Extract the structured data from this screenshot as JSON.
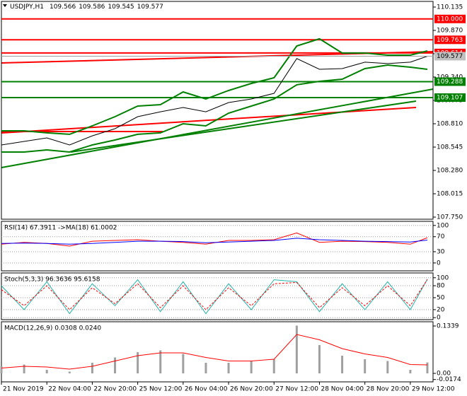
{
  "chart_data": [
    {
      "type": "line",
      "title": "USDJPY,H1",
      "ohlc": [
        109.566,
        109.586,
        109.545,
        109.577
      ],
      "x": [
        0,
        8,
        16,
        24,
        32,
        40,
        48,
        56,
        64,
        72,
        80,
        88,
        96,
        104,
        112,
        120,
        128,
        136,
        144,
        150
      ],
      "xlim": [
        0,
        152
      ],
      "xticks": [
        {
          "value": 0,
          "label": "21 Nov 2019"
        },
        {
          "value": 16,
          "label": "22 Nov 04:00"
        },
        {
          "value": 32,
          "label": "22 Nov 20:00"
        },
        {
          "value": 48,
          "label": "25 Nov 12:00"
        },
        {
          "value": 64,
          "label": "26 Nov 04:00"
        },
        {
          "value": 80,
          "label": "26 Nov 20:00"
        },
        {
          "value": 96,
          "label": "27 Nov 12:00"
        },
        {
          "value": 112,
          "label": "28 Nov 04:00"
        },
        {
          "value": 128,
          "label": "28 Nov 20:00"
        },
        {
          "value": 144,
          "label": "29 Nov 12:00"
        }
      ],
      "ylim": [
        107.726,
        110.199
      ],
      "yticks": [
        110.135,
        {
          "value": 109.87,
          "label": "109.870"
        },
        109.605,
        {
          "value": 109.34,
          "label": "109.340"
        },
        109.075,
        {
          "value": 108.81,
          "label": "108.810"
        },
        108.545,
        {
          "value": 108.28,
          "label": "108.280"
        },
        108.015,
        {
          "value": 107.75,
          "label": "107.750"
        }
      ],
      "series": [
        {
          "color": "#008000",
          "values": [
            108.73,
            108.73,
            108.706,
            108.69,
            108.786,
            108.89,
            109.011,
            109.027,
            109.171,
            109.091,
            109.187,
            109.268,
            109.332,
            109.693,
            109.774,
            109.613,
            109.613,
            109.589,
            109.589,
            109.637
          ]
        },
        {
          "color": "#008000",
          "values": [
            108.489,
            108.489,
            108.513,
            108.489,
            108.569,
            108.625,
            108.69,
            108.706,
            108.81,
            108.786,
            108.93,
            109.011,
            109.091,
            109.252,
            109.292,
            109.316,
            109.436,
            109.476,
            109.452,
            109.428
          ]
        },
        {
          "color": "#000000",
          "values": [
            108.569,
            108.609,
            108.649,
            108.569,
            108.673,
            108.754,
            108.89,
            108.946,
            108.995,
            108.946,
            109.051,
            109.091,
            109.155,
            109.55,
            109.428,
            109.436,
            109.509,
            109.493,
            109.509,
            109.577
          ]
        }
      ],
      "levels": [
        {
          "value": 110,
          "label": "110.000",
          "color": "#ff0000"
        },
        {
          "value": 109.763,
          "label": "109.763",
          "color": "#ff0000"
        },
        {
          "value": 109.614,
          "label": "109.614",
          "color": "#ff0000"
        },
        {
          "value": 109.288,
          "label": "109.288",
          "color": "#008000"
        },
        {
          "value": 109.107,
          "label": "109.107",
          "color": "#008000"
        }
      ]
    },
    {
      "type": "line",
      "title": "RSI(14) 67.3911 ->MA(18) 61.0002",
      "ylim": [
        -21,
        111
      ],
      "yticks": [
        100,
        70,
        30,
        0
      ],
      "grid": true,
      "series": [
        {
          "color": "#ff0000",
          "values": [
            50,
            55,
            52,
            45,
            58,
            60,
            62,
            58,
            55,
            50,
            60,
            60,
            62,
            80,
            55,
            58,
            57,
            55,
            50,
            67.3911
          ]
        },
        {
          "color": "#0000ff",
          "values": [
            52,
            53,
            52,
            50,
            52,
            55,
            58,
            58,
            57,
            54,
            56,
            58,
            60,
            66,
            62,
            60,
            58,
            57,
            56,
            61.0002
          ]
        }
      ]
    },
    {
      "type": "line",
      "title": "Stoch(5,3,3) 96.3636 95.6158",
      "ylim": [
        -5,
        112
      ],
      "yticks": [
        100,
        80,
        50,
        20,
        0
      ],
      "grid": true,
      "series": [
        {
          "color": "#20b2aa",
          "values": [
            80,
            20,
            90,
            10,
            85,
            30,
            95,
            15,
            90,
            10,
            85,
            20,
            95,
            90,
            15,
            85,
            20,
            90,
            20,
            96.3636
          ]
        },
        {
          "color": "#ff0000",
          "dashed": true,
          "values": [
            70,
            30,
            80,
            20,
            75,
            35,
            85,
            25,
            80,
            20,
            75,
            30,
            85,
            88,
            25,
            75,
            30,
            80,
            30,
            95.6158
          ]
        }
      ]
    },
    {
      "type": "bar",
      "title": "MACD(12,26,9) 0.0308 0.0240",
      "ylim": [
        -0.024,
        0.1459
      ],
      "yticks": [
        0.1339,
        {
          "value": 0,
          "label": "0.00"
        },
        -0.0174
      ],
      "color": "#a0a0a0",
      "values": [
        0.02,
        0.025,
        0.01,
        0.005,
        0.03,
        0.045,
        0.06,
        0.065,
        0.055,
        0.03,
        0.03,
        0.035,
        0.04,
        0.135,
        0.08,
        0.05,
        0.04,
        0.035,
        0.01,
        0.0308
      ],
      "series": [
        {
          "color": "#ff0000",
          "values": [
            0.015,
            0.02,
            0.018,
            0.012,
            0.02,
            0.035,
            0.05,
            0.058,
            0.058,
            0.045,
            0.035,
            0.035,
            0.04,
            0.11,
            0.095,
            0.07,
            0.055,
            0.045,
            0.025,
            0.024
          ]
        }
      ]
    }
  ]
}
